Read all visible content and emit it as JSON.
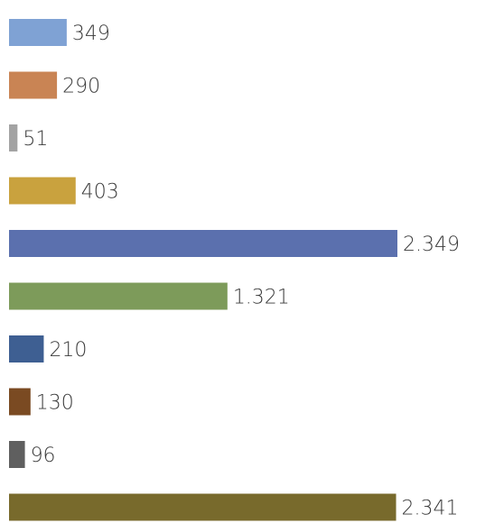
{
  "chart_data": {
    "type": "bar",
    "orientation": "horizontal",
    "values": [
      349,
      290,
      51,
      403,
      2349,
      1321,
      210,
      130,
      96,
      2341
    ],
    "labels": [
      "349",
      "290",
      "51",
      "403",
      "2.349",
      "1.321",
      "210",
      "130",
      "96",
      "2.341"
    ],
    "colors": [
      "#7FA2D4",
      "#C98454",
      "#A3A3A3",
      "#C9A23E",
      "#5B70AE",
      "#7D9B5A",
      "#3E5F92",
      "#7A4A22",
      "#5F5F5F",
      "#786A2C"
    ],
    "xlim": [
      0,
      2349
    ],
    "grid": false,
    "legend": "none"
  }
}
